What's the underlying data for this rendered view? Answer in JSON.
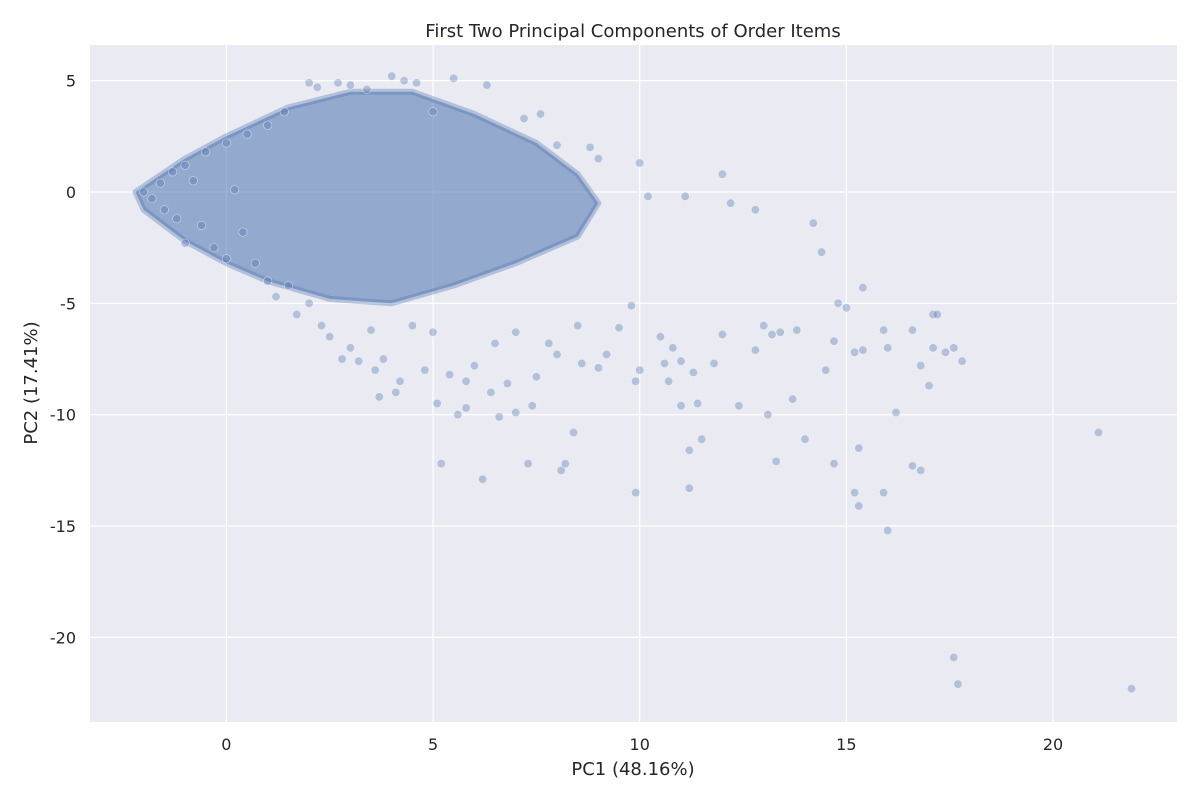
{
  "chart_data": {
    "type": "scatter",
    "title": "First Two Principal Components of Order Items",
    "xlabel": "PC1 (48.16%)",
    "ylabel": "PC2 (17.41%)",
    "xlim": [
      -3.3,
      23.0
    ],
    "ylim": [
      -23.8,
      6.6
    ],
    "xticks": [
      0,
      5,
      10,
      15,
      20
    ],
    "yticks": [
      5,
      0,
      -5,
      -10,
      -15,
      -20
    ],
    "grid": true,
    "marker_color": "#4c72b0",
    "marker_edge": "#ffffff",
    "marker_opacity": 0.35,
    "background": "#eaeaf2",
    "dense_core_description_polygon": [
      [
        -2.2,
        0.0
      ],
      [
        -1.0,
        1.5
      ],
      [
        0.0,
        2.5
      ],
      [
        1.5,
        3.8
      ],
      [
        3.0,
        4.5
      ],
      [
        4.5,
        4.5
      ],
      [
        6.0,
        3.5
      ],
      [
        7.5,
        2.2
      ],
      [
        8.5,
        0.8
      ],
      [
        9.0,
        -0.5
      ],
      [
        8.5,
        -2.0
      ],
      [
        7.0,
        -3.2
      ],
      [
        5.5,
        -4.2
      ],
      [
        4.0,
        -5.0
      ],
      [
        2.5,
        -4.8
      ],
      [
        1.0,
        -4.0
      ],
      [
        0.0,
        -3.2
      ],
      [
        -1.0,
        -2.2
      ],
      [
        -2.0,
        -0.8
      ]
    ],
    "points": [
      [
        -2.0,
        0.0
      ],
      [
        -1.8,
        -0.3
      ],
      [
        -1.6,
        0.4
      ],
      [
        -1.5,
        -0.8
      ],
      [
        -1.3,
        0.9
      ],
      [
        -1.2,
        -1.2
      ],
      [
        -1.0,
        1.2
      ],
      [
        -1.0,
        -2.3
      ],
      [
        -0.8,
        0.5
      ],
      [
        -0.6,
        -1.5
      ],
      [
        -0.5,
        1.8
      ],
      [
        -0.3,
        -2.5
      ],
      [
        0.0,
        2.2
      ],
      [
        0.0,
        -3.0
      ],
      [
        0.2,
        0.1
      ],
      [
        0.4,
        -1.8
      ],
      [
        0.5,
        2.6
      ],
      [
        0.7,
        -3.2
      ],
      [
        1.0,
        3.0
      ],
      [
        1.0,
        -4.0
      ],
      [
        1.2,
        -4.7
      ],
      [
        1.4,
        3.6
      ],
      [
        1.5,
        -4.2
      ],
      [
        1.7,
        -5.5
      ],
      [
        2.0,
        4.9
      ],
      [
        2.0,
        -5.0
      ],
      [
        2.2,
        4.7
      ],
      [
        2.3,
        -6.0
      ],
      [
        2.5,
        -6.5
      ],
      [
        2.7,
        4.9
      ],
      [
        2.8,
        -7.5
      ],
      [
        3.0,
        4.8
      ],
      [
        3.0,
        -7.0
      ],
      [
        3.2,
        -7.6
      ],
      [
        3.4,
        4.6
      ],
      [
        3.5,
        -6.2
      ],
      [
        3.6,
        -8.0
      ],
      [
        3.7,
        -9.2
      ],
      [
        3.8,
        -7.5
      ],
      [
        4.0,
        5.2
      ],
      [
        4.1,
        -9.0
      ],
      [
        4.2,
        -8.5
      ],
      [
        4.3,
        5.0
      ],
      [
        4.5,
        -6.0
      ],
      [
        4.6,
        4.9
      ],
      [
        4.8,
        -8.0
      ],
      [
        5.0,
        -6.3
      ],
      [
        5.0,
        3.6
      ],
      [
        5.1,
        -9.5
      ],
      [
        5.2,
        -12.2
      ],
      [
        5.4,
        -8.2
      ],
      [
        5.5,
        5.1
      ],
      [
        5.6,
        -10.0
      ],
      [
        5.8,
        -8.5
      ],
      [
        5.8,
        -9.7
      ],
      [
        6.0,
        -7.8
      ],
      [
        6.2,
        -12.9
      ],
      [
        6.3,
        4.8
      ],
      [
        6.4,
        -9.0
      ],
      [
        6.5,
        -6.8
      ],
      [
        6.6,
        -10.1
      ],
      [
        6.8,
        -8.6
      ],
      [
        7.0,
        -9.9
      ],
      [
        7.0,
        -6.3
      ],
      [
        7.2,
        3.3
      ],
      [
        7.3,
        -12.2
      ],
      [
        7.4,
        -9.6
      ],
      [
        7.5,
        -8.3
      ],
      [
        7.6,
        3.5
      ],
      [
        7.8,
        -6.8
      ],
      [
        8.0,
        -7.3
      ],
      [
        8.0,
        2.1
      ],
      [
        8.1,
        -12.5
      ],
      [
        8.2,
        -12.2
      ],
      [
        8.4,
        -10.8
      ],
      [
        8.5,
        -6.0
      ],
      [
        8.6,
        -7.7
      ],
      [
        8.8,
        2.0
      ],
      [
        9.0,
        -7.9
      ],
      [
        9.0,
        1.5
      ],
      [
        9.2,
        -7.3
      ],
      [
        9.5,
        -6.1
      ],
      [
        9.8,
        -5.1
      ],
      [
        9.9,
        -8.5
      ],
      [
        9.9,
        -13.5
      ],
      [
        10.0,
        -8.0
      ],
      [
        10.0,
        1.3
      ],
      [
        10.2,
        -0.2
      ],
      [
        10.5,
        -6.5
      ],
      [
        10.6,
        -7.7
      ],
      [
        10.7,
        -8.5
      ],
      [
        10.8,
        -7.0
      ],
      [
        11.0,
        -9.6
      ],
      [
        11.0,
        -7.6
      ],
      [
        11.1,
        -0.2
      ],
      [
        11.2,
        -11.6
      ],
      [
        11.2,
        -13.3
      ],
      [
        11.3,
        -8.1
      ],
      [
        11.4,
        -9.5
      ],
      [
        11.5,
        -11.1
      ],
      [
        11.8,
        -7.7
      ],
      [
        12.0,
        -6.4
      ],
      [
        12.0,
        0.8
      ],
      [
        12.2,
        -0.5
      ],
      [
        12.4,
        -9.6
      ],
      [
        12.8,
        -7.1
      ],
      [
        12.8,
        -0.8
      ],
      [
        13.0,
        -6.0
      ],
      [
        13.1,
        -10.0
      ],
      [
        13.2,
        -6.4
      ],
      [
        13.3,
        -12.1
      ],
      [
        13.4,
        -6.3
      ],
      [
        13.7,
        -9.3
      ],
      [
        13.8,
        -6.2
      ],
      [
        14.0,
        -11.1
      ],
      [
        14.2,
        -1.4
      ],
      [
        14.4,
        -2.7
      ],
      [
        14.5,
        -8.0
      ],
      [
        14.7,
        -6.7
      ],
      [
        14.7,
        -12.2
      ],
      [
        14.8,
        -5.0
      ],
      [
        15.0,
        -5.2
      ],
      [
        15.2,
        -7.2
      ],
      [
        15.2,
        -13.5
      ],
      [
        15.3,
        -11.5
      ],
      [
        15.3,
        -14.1
      ],
      [
        15.4,
        -7.1
      ],
      [
        15.4,
        -4.3
      ],
      [
        15.9,
        -13.5
      ],
      [
        15.9,
        -6.2
      ],
      [
        16.0,
        -15.2
      ],
      [
        16.0,
        -7.0
      ],
      [
        16.2,
        -9.9
      ],
      [
        16.6,
        -12.3
      ],
      [
        16.6,
        -6.2
      ],
      [
        16.8,
        -12.5
      ],
      [
        16.8,
        -7.8
      ],
      [
        17.0,
        -8.7
      ],
      [
        17.1,
        -7.0
      ],
      [
        17.1,
        -5.5
      ],
      [
        17.2,
        -5.5
      ],
      [
        17.4,
        -7.2
      ],
      [
        17.6,
        -7.0
      ],
      [
        17.8,
        -7.6
      ],
      [
        17.6,
        -20.9
      ],
      [
        17.7,
        -22.1
      ],
      [
        21.1,
        -10.8
      ],
      [
        21.9,
        -22.3
      ]
    ]
  }
}
